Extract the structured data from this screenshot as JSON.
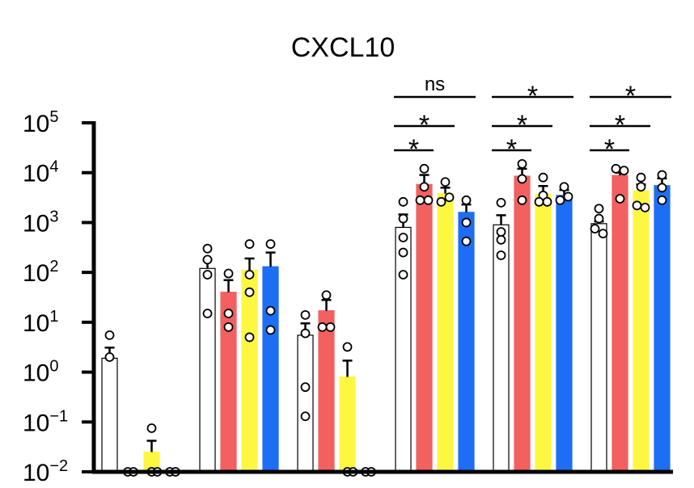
{
  "chart_data": {
    "type": "bar",
    "title": "CXCL10",
    "yscale": "log",
    "ylim": [
      0.01,
      100000
    ],
    "y_tick_labels": [
      {
        "base": "10",
        "exp": "−2",
        "value": 0.01
      },
      {
        "base": "10",
        "exp": "−1",
        "value": 0.1
      },
      {
        "base": "10",
        "exp": "0",
        "value": 1
      },
      {
        "base": "10",
        "exp": "1",
        "value": 10
      },
      {
        "base": "10",
        "exp": "2",
        "value": 100
      },
      {
        "base": "10",
        "exp": "3",
        "value": 1000
      },
      {
        "base": "10",
        "exp": "4",
        "value": 10000
      },
      {
        "base": "10",
        "exp": "5",
        "value": 100000
      }
    ],
    "series_colors": [
      "#ffffff",
      "#f26060",
      "#fdf742",
      "#1e6ef5"
    ],
    "groups": [
      {
        "bars": [
          {
            "value": 1.9,
            "err": 3.1,
            "points": [
              5.5,
              2.0
            ]
          },
          {
            "value": 0.01,
            "points": [
              0.01,
              0.01
            ]
          },
          {
            "value": 0.025,
            "err": 0.042,
            "points": [
              0.075,
              0.01,
              0.01
            ]
          },
          {
            "value": 0.01,
            "points": [
              0.01,
              0.01
            ]
          }
        ]
      },
      {
        "bars": [
          {
            "value": 120,
            "err": 180,
            "points": [
              300,
              180,
              90,
              15
            ]
          },
          {
            "value": 40,
            "err": 70,
            "points": [
              95,
              15,
              8
            ]
          },
          {
            "value": 110,
            "err": 190,
            "points": [
              370,
              90,
              40,
              5
            ]
          },
          {
            "value": 130,
            "err": 250,
            "points": [
              370,
              17,
              7
            ]
          }
        ]
      },
      {
        "bars": [
          {
            "value": 5.5,
            "err": 9.5,
            "points": [
              14,
              6,
              0.5,
              0.13
            ]
          },
          {
            "value": 17,
            "err": 28,
            "points": [
              35,
              8,
              8
            ]
          },
          {
            "value": 0.8,
            "err": 1.7,
            "points": [
              3.2,
              0.01,
              0.01
            ]
          },
          {
            "value": 0.01,
            "points": [
              0.01,
              0.01
            ]
          }
        ]
      },
      {
        "bars": [
          {
            "value": 800,
            "err": 1450,
            "points": [
              2600,
              1200,
              500,
              250,
              90
            ]
          },
          {
            "value": 5800,
            "err": 9000,
            "points": [
              12000,
              5200,
              2800,
              2800
            ]
          },
          {
            "value": 3800,
            "err": 5000,
            "points": [
              6500,
              3200,
              2600
            ]
          },
          {
            "value": 1600,
            "err": 2300,
            "points": [
              2800,
              1000,
              420
            ]
          }
        ]
      },
      {
        "bars": [
          {
            "value": 900,
            "err": 1400,
            "points": [
              2500,
              650,
              450,
              220
            ]
          },
          {
            "value": 8500,
            "err": 12000,
            "points": [
              15000,
              7500,
              2800
            ]
          },
          {
            "value": 3700,
            "err": 5400,
            "points": [
              8000,
              3500,
              2600,
              2600
            ]
          },
          {
            "value": 3500,
            "err": 4500,
            "points": [
              5200,
              3300,
              2800
            ]
          }
        ]
      },
      {
        "bars": [
          {
            "value": 950,
            "err": 1050,
            "points": [
              1900,
              1200,
              750,
              600
            ]
          },
          {
            "value": 8800,
            "err": 10000,
            "points": [
              12000,
              11000,
              3000
            ]
          },
          {
            "value": 4300,
            "err": 5800,
            "points": [
              8000,
              5200,
              2200,
              2000
            ]
          },
          {
            "value": 5500,
            "err": 7700,
            "points": [
              9000,
              5000,
              2800
            ]
          }
        ]
      }
    ],
    "significance": [
      {
        "group": 3,
        "from": 0,
        "to": 1,
        "label": "*"
      },
      {
        "group": 3,
        "from": 0,
        "to": 2,
        "label": "*"
      },
      {
        "group": 3,
        "from": 0,
        "to": 3,
        "label": "ns"
      },
      {
        "group": 4,
        "from": 0,
        "to": 1,
        "label": "*"
      },
      {
        "group": 4,
        "from": 0,
        "to": 2,
        "label": "*"
      },
      {
        "group": 4,
        "from": 0,
        "to": 3,
        "label": "*"
      },
      {
        "group": 5,
        "from": 0,
        "to": 1,
        "label": "*"
      },
      {
        "group": 5,
        "from": 0,
        "to": 2,
        "label": "*"
      },
      {
        "group": 5,
        "from": 0,
        "to": 3,
        "label": "*"
      }
    ]
  }
}
